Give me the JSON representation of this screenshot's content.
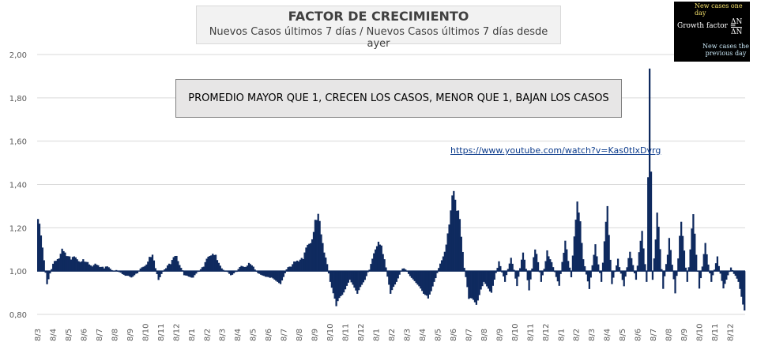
{
  "title": {
    "main": "FACTOR DE CRECIMIENTO",
    "sub": "Nuevos Casos últimos 7 días / Nuevos Casos últimos 7 días desde ayer"
  },
  "formula_image": {
    "top_label": "New cases one day",
    "formula": "Growth factor =",
    "numerator": "ΔN",
    "denominator": "ΔN",
    "bottom_label_1": "New cases the",
    "bottom_label_2": "previous day"
  },
  "note": "PROMEDIO MAYOR QUE 1, CRECEN LOS CASOS, MENOR QUE 1, BAJAN LOS CASOS",
  "link": "https://www.youtube.com/watch?v=Kas0tIxDvrg",
  "colors": {
    "series": "#0f2a5f",
    "grid": "#d9d9d9"
  },
  "chart_data": {
    "type": "area",
    "baseline": 1.0,
    "ylim": [
      0.8,
      2.0
    ],
    "yticks": [
      "0,80",
      "1,00",
      "1,20",
      "1,40",
      "1,60",
      "1,80",
      "2,00"
    ],
    "grid": "horizontal",
    "xtick_labels": [
      "8/3",
      "8/4",
      "8/5",
      "8/6",
      "8/7",
      "8/8",
      "8/9",
      "8/10",
      "8/11",
      "8/12",
      "8/1",
      "8/2",
      "8/3",
      "8/4",
      "8/5",
      "8/6",
      "8/7",
      "8/8",
      "8/9",
      "8/10",
      "8/11",
      "8/12",
      "8/1",
      "8/2",
      "8/3",
      "8/4",
      "8/5",
      "8/6",
      "8/7",
      "8/8",
      "8/9",
      "8/10",
      "8/11",
      "8/12",
      "8/1",
      "8/2",
      "8/3",
      "8/4",
      "8/5",
      "8/6",
      "8/7",
      "8/8",
      "8/9",
      "8/10",
      "8/11",
      "8/12"
    ],
    "series": [
      {
        "key_points": [
          [
            0,
            1.28
          ],
          [
            2,
            1.15
          ],
          [
            4,
            1.05
          ],
          [
            6,
            0.94
          ],
          [
            10,
            1.03
          ],
          [
            16,
            1.09
          ],
          [
            24,
            1.06
          ],
          [
            35,
            1.03
          ],
          [
            45,
            1.02
          ],
          [
            55,
            0.99
          ],
          [
            62,
            0.97
          ],
          [
            70,
            1.02
          ],
          [
            76,
            1.07
          ],
          [
            80,
            0.96
          ],
          [
            86,
            1.03
          ],
          [
            92,
            1.07
          ],
          [
            97,
            0.98
          ],
          [
            103,
            0.97
          ],
          [
            109,
            1.02
          ],
          [
            116,
            1.09
          ],
          [
            121,
            1.02
          ],
          [
            128,
            0.98
          ],
          [
            135,
            1.02
          ],
          [
            141,
            1.03
          ],
          [
            148,
            0.98
          ],
          [
            155,
            0.97
          ],
          [
            161,
            0.94
          ],
          [
            166,
            1.02
          ],
          [
            171,
            1.04
          ],
          [
            176,
            1.07
          ],
          [
            181,
            1.14
          ],
          [
            186,
            1.25
          ],
          [
            190,
            1.1
          ],
          [
            194,
            0.95
          ],
          [
            198,
            0.85
          ],
          [
            202,
            0.89
          ],
          [
            207,
            0.96
          ],
          [
            212,
            0.9
          ],
          [
            217,
            0.96
          ],
          [
            222,
            1.05
          ],
          [
            226,
            1.15
          ],
          [
            230,
            1.05
          ],
          [
            234,
            0.9
          ],
          [
            238,
            0.95
          ],
          [
            242,
            1.02
          ],
          [
            248,
            0.97
          ],
          [
            254,
            0.92
          ],
          [
            259,
            0.87
          ],
          [
            264,
            0.97
          ],
          [
            268,
            1.05
          ],
          [
            272,
            1.15
          ],
          [
            276,
            1.38
          ],
          [
            279,
            1.28
          ],
          [
            283,
            1.02
          ],
          [
            286,
            0.88
          ],
          [
            291,
            0.85
          ],
          [
            296,
            0.95
          ],
          [
            301,
            0.9
          ],
          [
            306,
            1.05
          ],
          [
            310,
            0.95
          ],
          [
            314,
            1.07
          ],
          [
            318,
            0.93
          ],
          [
            322,
            1.1
          ],
          [
            326,
            0.91
          ],
          [
            330,
            1.12
          ],
          [
            334,
            0.95
          ],
          [
            338,
            1.08
          ],
          [
            342,
            1.02
          ],
          [
            346,
            0.93
          ],
          [
            350,
            1.15
          ],
          [
            354,
            0.97
          ],
          [
            358,
            1.35
          ],
          [
            362,
            1.05
          ],
          [
            366,
            0.92
          ],
          [
            370,
            1.12
          ],
          [
            374,
            0.95
          ],
          [
            378,
            1.3
          ],
          [
            381,
            0.94
          ],
          [
            385,
            1.05
          ],
          [
            389,
            0.93
          ],
          [
            393,
            1.1
          ],
          [
            397,
            0.96
          ],
          [
            401,
            1.2
          ],
          [
            404,
            0.95
          ],
          [
            406,
            1.89
          ],
          [
            408,
            0.96
          ],
          [
            411,
            1.27
          ],
          [
            415,
            0.92
          ],
          [
            419,
            1.15
          ],
          [
            423,
            0.9
          ],
          [
            427,
            1.22
          ],
          [
            431,
            0.95
          ],
          [
            435,
            1.25
          ],
          [
            439,
            0.92
          ],
          [
            443,
            1.12
          ],
          [
            447,
            0.95
          ],
          [
            451,
            1.06
          ],
          [
            455,
            0.92
          ],
          [
            460,
            1.02
          ],
          [
            465,
            0.95
          ],
          [
            469,
            0.82
          ]
        ]
      }
    ]
  }
}
